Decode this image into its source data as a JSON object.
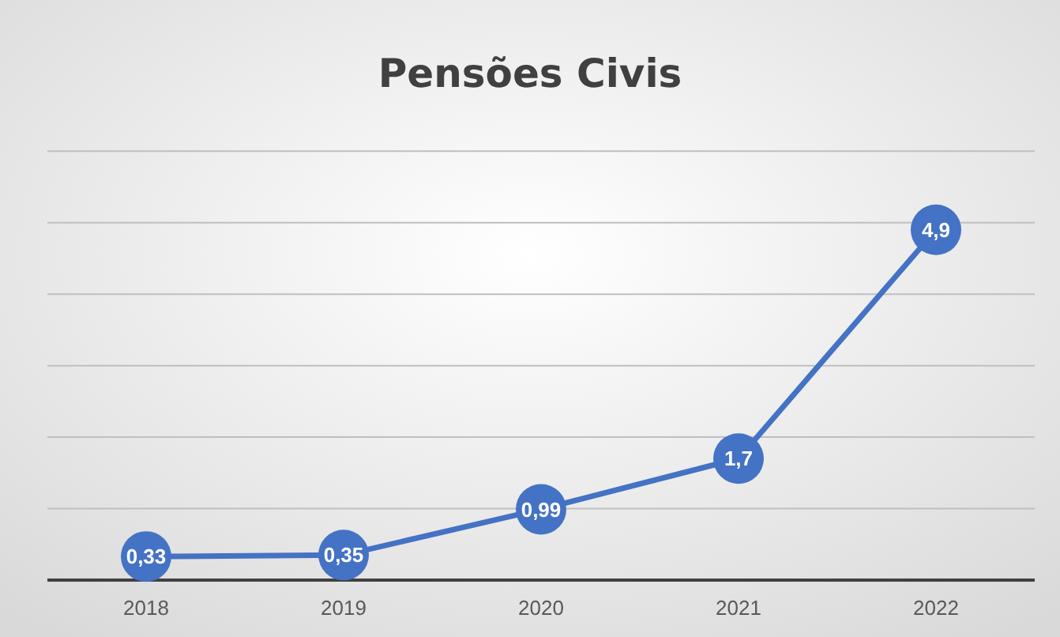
{
  "chart_data": {
    "type": "line",
    "title": "Pensões Civis",
    "categories": [
      "2018",
      "2019",
      "2020",
      "2021",
      "2022"
    ],
    "series": [
      {
        "color": "#4472c4",
        "values": [
          0.33,
          0.35,
          0.99,
          1.7,
          4.9
        ],
        "value_labels": [
          "0,33",
          "0,35",
          "0,99",
          "1,7",
          "4,9"
        ]
      }
    ],
    "grid": "y",
    "tick_labels": "x",
    "marker": "circle",
    "line_style": "solid"
  }
}
